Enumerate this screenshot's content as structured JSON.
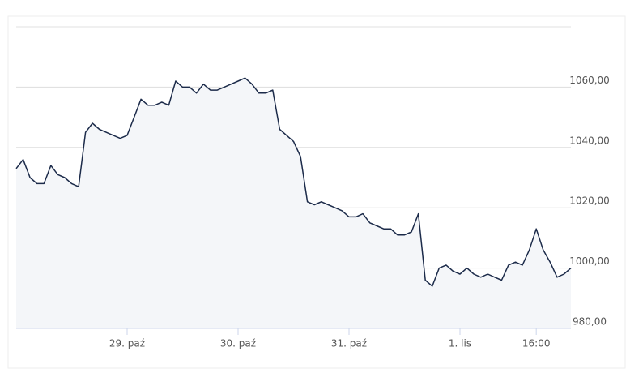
{
  "chart_data": {
    "type": "line",
    "categories": [
      null,
      null,
      null,
      null,
      null,
      null,
      null,
      null,
      null,
      null,
      null,
      null,
      null,
      null,
      null,
      null,
      "29. paź",
      null,
      null,
      null,
      null,
      null,
      null,
      null,
      null,
      null,
      null,
      null,
      null,
      null,
      null,
      null,
      "30. paź",
      null,
      null,
      null,
      null,
      null,
      null,
      null,
      null,
      null,
      null,
      null,
      null,
      null,
      null,
      null,
      "31. paź",
      null,
      null,
      null,
      null,
      null,
      null,
      null,
      null,
      null,
      null,
      null,
      null,
      null,
      null,
      null,
      "1. lis",
      null,
      null,
      null,
      null,
      null,
      null,
      null,
      null,
      null,
      null,
      "16:00",
      null,
      null,
      null,
      null,
      null
    ],
    "series": [
      {
        "color": "#1c2b4a",
        "values": [
          1033,
          1036,
          1030,
          1028,
          1028,
          1034,
          1031,
          1030,
          1028,
          1027,
          1045,
          1048,
          1046,
          1045,
          1044,
          1043,
          1044,
          1050,
          1056,
          1054,
          1054,
          1055,
          1054,
          1062,
          1060,
          1060,
          1058,
          1061,
          1059,
          1059,
          1060,
          1061,
          1062,
          1063,
          1061,
          1058,
          1058,
          1059,
          1046,
          1044,
          1042,
          1037,
          1022,
          1021,
          1022,
          1021,
          1020,
          1019,
          1017,
          1017,
          1018,
          1015,
          1014,
          1013,
          1013,
          1011,
          1011,
          1012,
          1018,
          996,
          994,
          1000,
          1001,
          999,
          998,
          1000,
          998,
          997,
          998,
          997,
          996,
          1001,
          1002,
          1001,
          1006,
          1013,
          1006,
          1002,
          997,
          998,
          1000
        ]
      }
    ],
    "ylim": [
      980,
      1080
    ],
    "yticks": [
      {
        "value": 980,
        "label": "980,00"
      },
      {
        "value": 1000,
        "label": "1000,00"
      },
      {
        "value": 1020,
        "label": "1020,00"
      },
      {
        "value": 1040,
        "label": "1040,00"
      },
      {
        "value": 1060,
        "label": "1060,00"
      }
    ],
    "grid": true
  }
}
